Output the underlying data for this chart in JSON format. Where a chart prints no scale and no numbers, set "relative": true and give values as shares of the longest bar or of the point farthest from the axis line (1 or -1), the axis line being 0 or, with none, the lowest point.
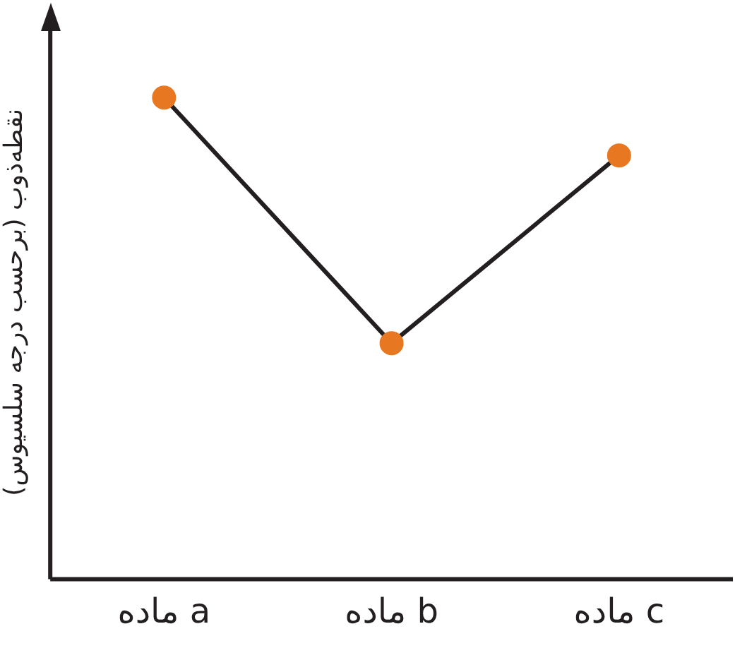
{
  "chart_data": {
    "type": "line",
    "relative": true,
    "ylabel": "نقطه‌ذوب (برحسب درجه سلسیوس)",
    "categories": [
      "ماده a",
      "ماده b",
      "ماده c"
    ],
    "series": [
      {
        "color": "#231f20",
        "colors": [
          "#e87722",
          "#e87722",
          "#e87722"
        ],
        "values": [
          1,
          0.49,
          0.88
        ]
      }
    ],
    "marker": "circle",
    "line_style": "solid",
    "grid": false,
    "legend": false
  }
}
